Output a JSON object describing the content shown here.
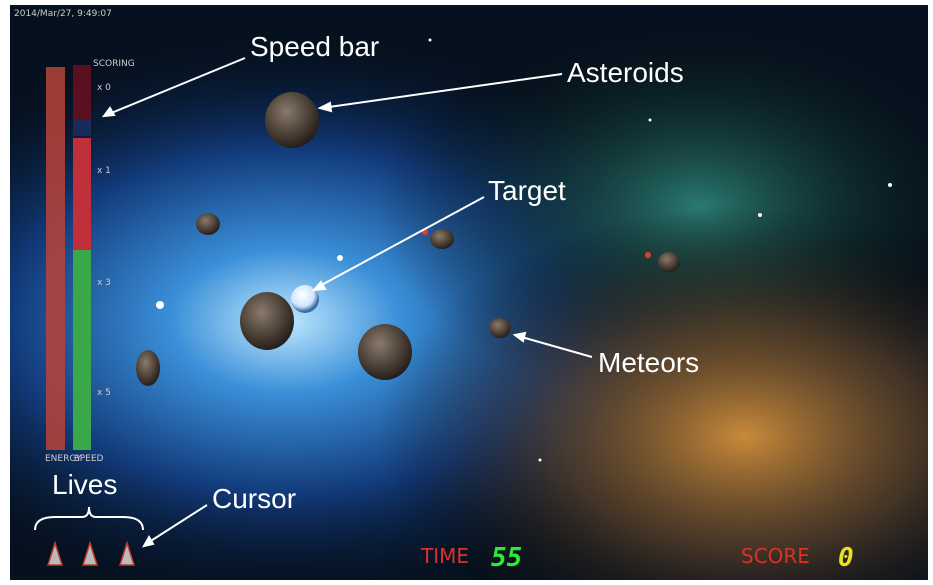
{
  "timestamp": "2014/Mar/27, 9:49:07",
  "hud": {
    "scoring_label": "SCORING",
    "multipliers": [
      "x 0",
      "x 1",
      "x 3",
      "x 5"
    ],
    "energy_label": "ENERGY",
    "speed_label": "SPEED",
    "time_label": "TIME",
    "time_value": "55",
    "score_label": "SCORE",
    "score_value": "0"
  },
  "annotations": {
    "speed_bar": "Speed bar",
    "asteroids": "Asteroids",
    "target": "Target",
    "meteors": "Meteors",
    "lives": "Lives",
    "cursor": "Cursor"
  }
}
